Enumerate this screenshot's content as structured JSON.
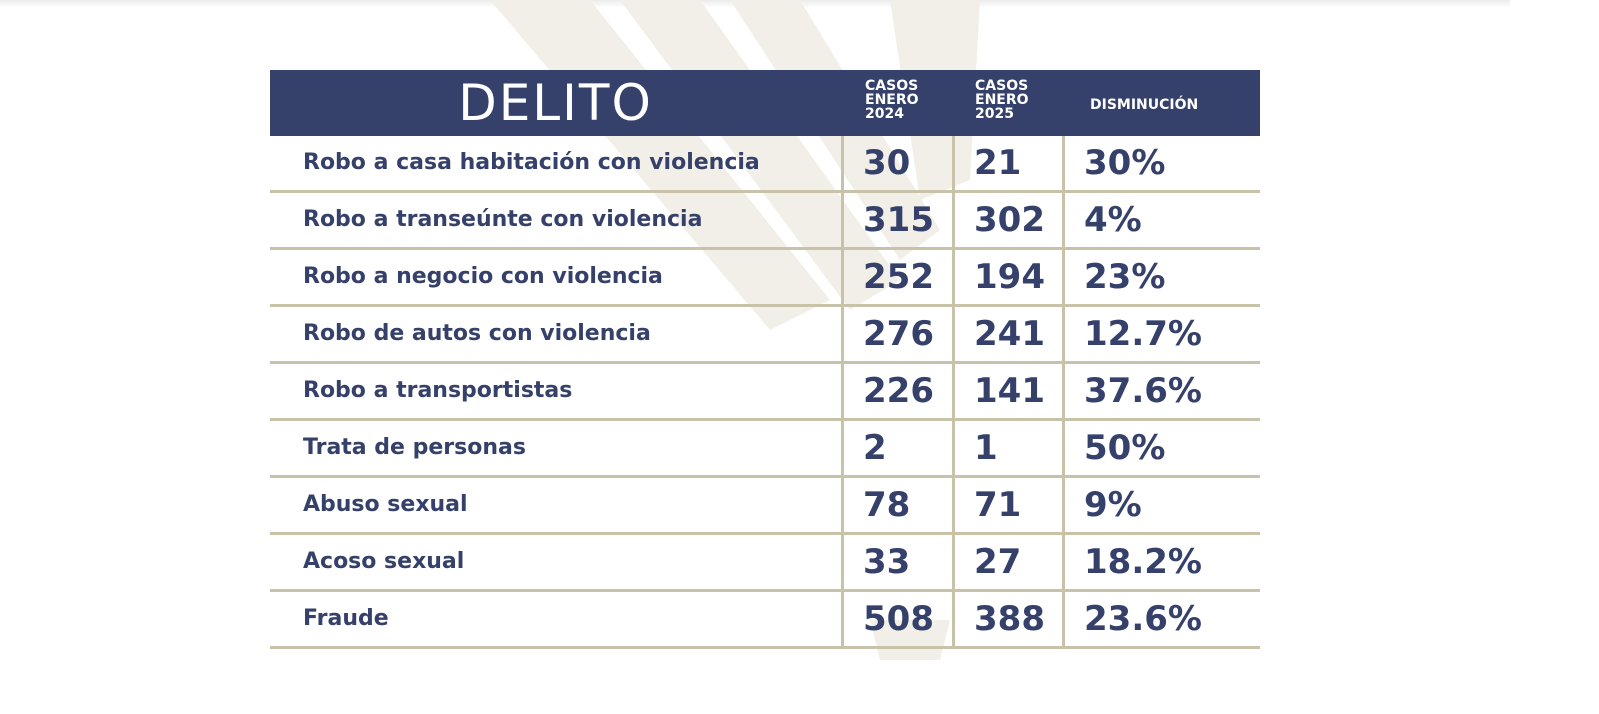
{
  "colors": {
    "header_bg": "#35416a",
    "text": "#35416a",
    "separator": "#c8c2a8",
    "background": "#ffffff"
  },
  "header": {
    "delito": "DELITO",
    "col_2024": [
      "CASOS",
      "ENERO",
      "2024"
    ],
    "col_2025": [
      "CASOS",
      "ENERO",
      "2025"
    ],
    "col_change": "DISMINUCIÓN"
  },
  "chart_data": {
    "type": "table",
    "columns": [
      "DELITO",
      "CASOS ENERO 2024",
      "CASOS ENERO 2025",
      "DISMINUCIÓN"
    ],
    "rows": [
      {
        "delito": "Robo a casa habitación con violencia",
        "enero_2024": "30",
        "enero_2025": "21",
        "disminucion": "30%"
      },
      {
        "delito": "Robo a transeúnte con violencia",
        "enero_2024": "315",
        "enero_2025": "302",
        "disminucion": "4%"
      },
      {
        "delito": "Robo a negocio con violencia",
        "enero_2024": "252",
        "enero_2025": "194",
        "disminucion": "23%"
      },
      {
        "delito": "Robo de autos con violencia",
        "enero_2024": "276",
        "enero_2025": "241",
        "disminucion": "12.7%"
      },
      {
        "delito": "Robo a transportistas",
        "enero_2024": "226",
        "enero_2025": "141",
        "disminucion": "37.6%"
      },
      {
        "delito": "Trata de personas",
        "enero_2024": "2",
        "enero_2025": "1",
        "disminucion": "50%"
      },
      {
        "delito": "Abuso sexual",
        "enero_2024": "78",
        "enero_2025": "71",
        "disminucion": "9%"
      },
      {
        "delito": "Acoso sexual",
        "enero_2024": "33",
        "enero_2025": "27",
        "disminucion": "18.2%"
      },
      {
        "delito": "Fraude",
        "enero_2024": "508",
        "enero_2025": "388",
        "disminucion": "23.6%"
      }
    ]
  }
}
